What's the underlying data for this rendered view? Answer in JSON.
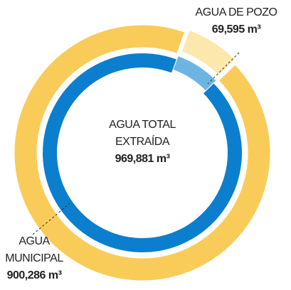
{
  "chart_data": {
    "type": "pie",
    "categories": [
      "AGUA DE POZO",
      "AGUA MUNICIPAL"
    ],
    "values": [
      69595,
      900286
    ],
    "value_labels": [
      "69,595 m³",
      "900,286 m³"
    ],
    "colors": [
      "#fce7ad",
      "#f9cc5a"
    ],
    "inner_colors": [
      "#6cb5e3",
      "#0b7fcd"
    ],
    "center_label": "AGUA TOTAL EXTRAÍDA",
    "total_label": "969,881 m³"
  }
}
